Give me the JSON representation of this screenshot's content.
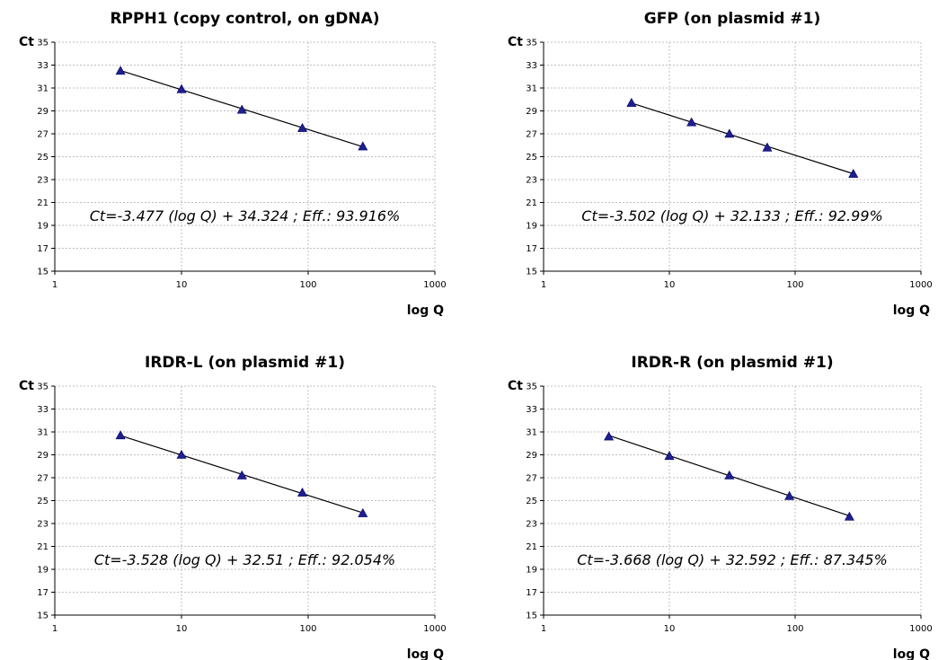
{
  "chart_data": [
    {
      "type": "scatter",
      "title": "RPPH1 (copy control, on gDNA)",
      "xlabel": "log Q",
      "ylabel": "Ct",
      "xscale": "log",
      "xlim": [
        1,
        1000
      ],
      "ylim": [
        15,
        35
      ],
      "xticks": [
        "1",
        "10",
        "100",
        "1000"
      ],
      "yticks": [
        "15",
        "17",
        "19",
        "21",
        "23",
        "25",
        "27",
        "29",
        "31",
        "33",
        "35"
      ],
      "grid": true,
      "marker": "triangle",
      "marker_color": "#1f1f8f",
      "x": [
        3.3,
        10,
        30,
        90,
        270
      ],
      "y": [
        32.5,
        30.9,
        29.1,
        27.5,
        25.9
      ],
      "trendline": {
        "slope": -3.477,
        "intercept": 34.324
      },
      "annotation": "Ct=-3.477 (log Q) + 34.324 ; Eff.: 93.916%"
    },
    {
      "type": "scatter",
      "title": "GFP (on plasmid #1)",
      "xlabel": "log Q",
      "ylabel": "Ct",
      "xscale": "log",
      "xlim": [
        1,
        1000
      ],
      "ylim": [
        15,
        35
      ],
      "xticks": [
        "1",
        "10",
        "100",
        "1000"
      ],
      "yticks": [
        "15",
        "17",
        "19",
        "21",
        "23",
        "25",
        "27",
        "29",
        "31",
        "33",
        "35"
      ],
      "grid": true,
      "marker": "triangle",
      "marker_color": "#1f1f8f",
      "x": [
        5,
        15,
        30,
        60,
        290
      ],
      "y": [
        29.7,
        28.0,
        27.0,
        25.8,
        23.5
      ],
      "trendline": {
        "slope": -3.502,
        "intercept": 32.133
      },
      "annotation": "Ct=-3.502 (log Q) + 32.133 ; Eff.: 92.99%"
    },
    {
      "type": "scatter",
      "title": "IRDR-L (on plasmid #1)",
      "xlabel": "log Q",
      "ylabel": "Ct",
      "xscale": "log",
      "xlim": [
        1,
        1000
      ],
      "ylim": [
        15,
        35
      ],
      "xticks": [
        "1",
        "10",
        "100",
        "1000"
      ],
      "yticks": [
        "15",
        "17",
        "19",
        "21",
        "23",
        "25",
        "27",
        "29",
        "31",
        "33",
        "35"
      ],
      "grid": true,
      "marker": "triangle",
      "marker_color": "#1f1f8f",
      "x": [
        3.3,
        10,
        30,
        90,
        270
      ],
      "y": [
        30.7,
        29.0,
        27.2,
        25.7,
        23.9
      ],
      "trendline": {
        "slope": -3.528,
        "intercept": 32.51
      },
      "annotation": "Ct=-3.528 (log Q) + 32.51 ; Eff.: 92.054%"
    },
    {
      "type": "scatter",
      "title": "IRDR-R (on plasmid #1)",
      "xlabel": "log Q",
      "ylabel": "Ct",
      "xscale": "log",
      "xlim": [
        1,
        1000
      ],
      "ylim": [
        15,
        35
      ],
      "xticks": [
        "1",
        "10",
        "100",
        "1000"
      ],
      "yticks": [
        "15",
        "17",
        "19",
        "21",
        "23",
        "25",
        "27",
        "29",
        "31",
        "33",
        "35"
      ],
      "grid": true,
      "marker": "triangle",
      "marker_color": "#1f1f8f",
      "x": [
        3.3,
        10,
        30,
        90,
        270
      ],
      "y": [
        30.6,
        28.9,
        27.2,
        25.4,
        23.6
      ],
      "trendline": {
        "slope": -3.668,
        "intercept": 32.592
      },
      "annotation": "Ct=-3.668 (log Q) + 32.592 ; Eff.: 87.345%"
    }
  ]
}
